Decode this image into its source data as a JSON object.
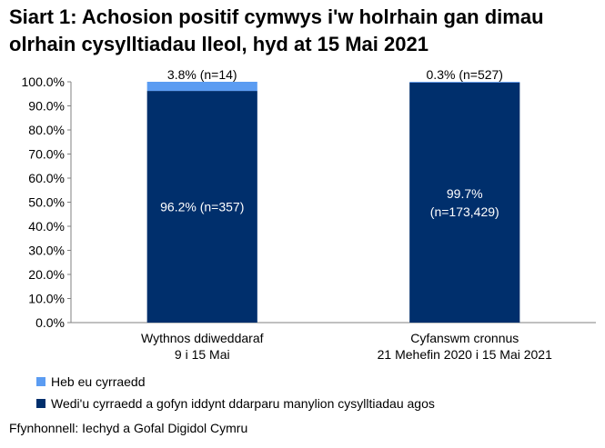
{
  "title": "Siart 1: Achosion positif cymwys i'w holrhain gan dimau olrhain cysylltiadau lleol, hyd at 15 Mai 2021",
  "source": "Ffynhonnell: Iechyd a Gofal Digidol Cymru",
  "colors": {
    "reached": "#002f6c",
    "not_reached": "#5b9cf2",
    "axis": "#808080"
  },
  "chart_data": {
    "type": "bar",
    "stacked": true,
    "categories": [
      [
        "Wythnos ddiweddaraf",
        "9 i 15 Mai"
      ],
      [
        "Cyfanswm cronnus",
        "21 Mehefin 2020 i 15 Mai 2021"
      ]
    ],
    "series": [
      {
        "name": "Wedi'u cyrraedd a gofyn iddynt ddarparu manylion cysylltiadau agos",
        "color": "#002f6c",
        "values": [
          96.2,
          99.7
        ],
        "labels": [
          [
            "96.2% (n=357)"
          ],
          [
            "99.7%",
            "(n=173,429)"
          ]
        ]
      },
      {
        "name": "Heb eu cyrraedd",
        "color": "#5b9cf2",
        "values": [
          3.8,
          0.3
        ],
        "labels": [
          [
            "3.8% (n=14)"
          ],
          [
            "0.3% (n=527)"
          ]
        ]
      }
    ],
    "ylim": [
      0,
      100
    ],
    "ytick_step": 10,
    "ytick_labels": [
      "0.0%",
      "10.0%",
      "20.0%",
      "30.0%",
      "40.0%",
      "50.0%",
      "60.0%",
      "70.0%",
      "80.0%",
      "90.0%",
      "100.0%"
    ],
    "xlabel": "",
    "ylabel": "",
    "legend_position": "bottom-left",
    "grid": false
  }
}
